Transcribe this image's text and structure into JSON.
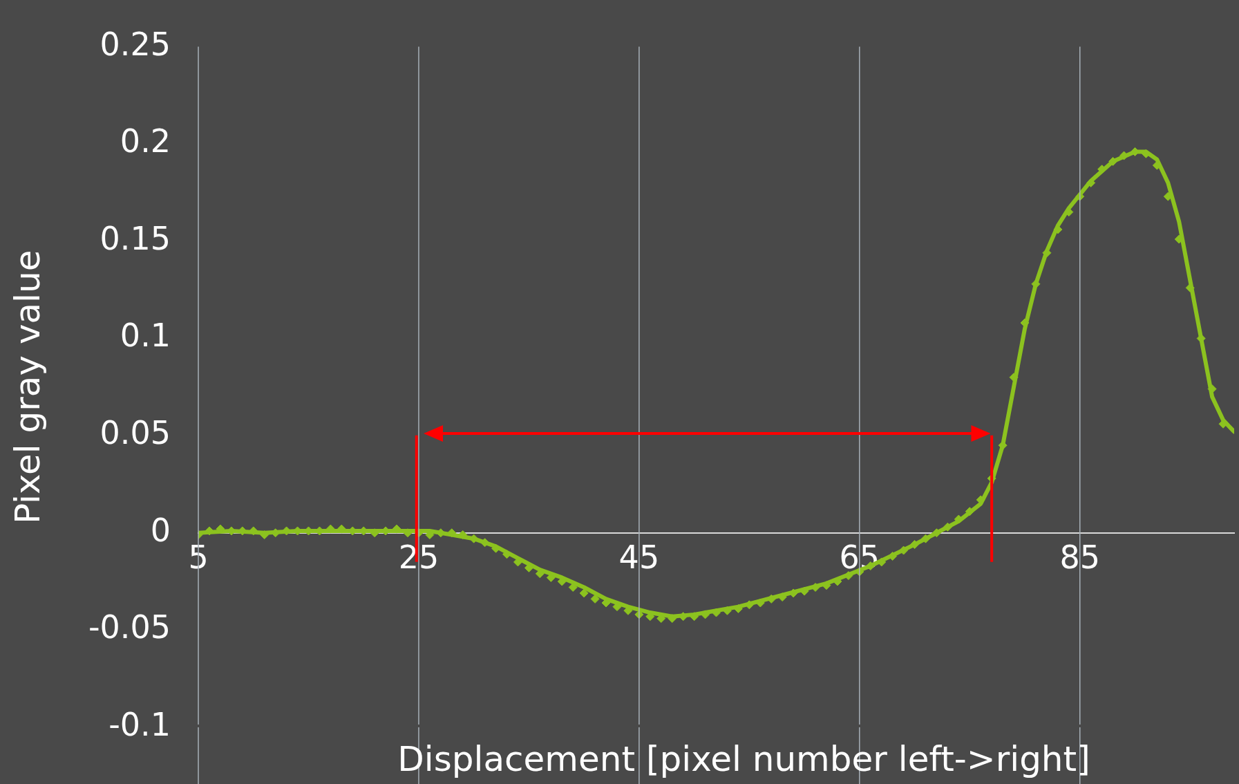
{
  "chart_data": {
    "type": "line",
    "xlabel": "Displacement [pixel number left->right]",
    "ylabel": "Pixel gray value",
    "xlim": [
      5,
      99
    ],
    "xticks": [
      5,
      25,
      45,
      65,
      85
    ],
    "ylim": [
      -0.1,
      0.25
    ],
    "yticks": [
      -0.1,
      -0.05,
      0,
      0.05,
      0.1,
      0.15,
      0.2,
      0.25
    ],
    "grid": "x",
    "legend": false,
    "series": [
      {
        "type": "scatter",
        "marker": "diamond",
        "color": "#8cc21f",
        "x": [
          5,
          6,
          7,
          8,
          9,
          10,
          11,
          12,
          13,
          14,
          15,
          16,
          17,
          18,
          19,
          20,
          21,
          22,
          23,
          24,
          25,
          26,
          27,
          28,
          29,
          30,
          31,
          32,
          33,
          34,
          35,
          36,
          37,
          38,
          39,
          40,
          41,
          42,
          43,
          44,
          45,
          46,
          47,
          48,
          49,
          50,
          51,
          52,
          53,
          54,
          55,
          56,
          57,
          58,
          59,
          60,
          61,
          62,
          63,
          64,
          65,
          66,
          67,
          68,
          69,
          70,
          71,
          72,
          73,
          74,
          75,
          76,
          77,
          78,
          79,
          80,
          81,
          82,
          83,
          84,
          85,
          86,
          87,
          88,
          89,
          90,
          91,
          92,
          93,
          94,
          95,
          96,
          97,
          98
        ],
        "values": [
          -0.001,
          0.001,
          0.002,
          0.001,
          0.001,
          0.001,
          -0.001,
          0,
          0.001,
          0.001,
          0.001,
          0.001,
          0.002,
          0.002,
          0.001,
          0.001,
          0,
          0.001,
          0.002,
          0,
          0,
          -0.001,
          0,
          0,
          -0.001,
          -0.003,
          -0.005,
          -0.008,
          -0.011,
          -0.015,
          -0.018,
          -0.021,
          -0.023,
          -0.025,
          -0.028,
          -0.031,
          -0.034,
          -0.036,
          -0.038,
          -0.04,
          -0.042,
          -0.043,
          -0.044,
          -0.044,
          -0.043,
          -0.043,
          -0.042,
          -0.041,
          -0.04,
          -0.039,
          -0.037,
          -0.036,
          -0.034,
          -0.033,
          -0.031,
          -0.03,
          -0.028,
          -0.027,
          -0.025,
          -0.022,
          -0.02,
          -0.017,
          -0.015,
          -0.012,
          -0.009,
          -0.006,
          -0.003,
          0,
          0.003,
          0.007,
          0.011,
          0.017,
          0.028,
          0.045,
          0.08,
          0.108,
          0.128,
          0.144,
          0.156,
          0.165,
          0.173,
          0.18,
          0.187,
          0.191,
          0.194,
          0.196,
          0.195,
          0.189,
          0.173,
          0.151,
          0.126,
          0.1,
          0.074,
          0.056
        ]
      },
      {
        "type": "line",
        "marker": "none",
        "line_style": "solid",
        "color": "#8cc21f",
        "x": [
          5,
          8,
          11,
          14,
          17,
          20,
          23,
          26,
          28,
          30,
          32,
          34,
          36,
          38,
          40,
          42,
          44,
          46,
          48,
          50,
          54,
          58,
          62,
          66,
          70,
          72,
          74,
          76,
          77,
          78,
          79,
          80,
          81,
          82,
          83,
          84,
          86,
          88,
          90,
          91,
          92,
          93,
          94,
          95,
          96,
          97,
          98,
          99
        ],
        "values": [
          0,
          0.001,
          0,
          0.001,
          0.001,
          0.001,
          0.001,
          0.001,
          -0.001,
          -0.003,
          -0.007,
          -0.013,
          -0.019,
          -0.023,
          -0.028,
          -0.034,
          -0.038,
          -0.041,
          -0.043,
          -0.042,
          -0.038,
          -0.032,
          -0.026,
          -0.017,
          -0.006,
          0,
          0.006,
          0.015,
          0.026,
          0.045,
          0.075,
          0.105,
          0.128,
          0.145,
          0.158,
          0.167,
          0.181,
          0.191,
          0.196,
          0.196,
          0.192,
          0.18,
          0.16,
          0.13,
          0.1,
          0.07,
          0.058,
          0.052
        ]
      }
    ],
    "ref_lines": [
      {
        "axis": "x",
        "value": 24.8,
        "color": "#ff0000"
      },
      {
        "axis": "x",
        "value": 77,
        "color": "#ff0000"
      }
    ]
  }
}
